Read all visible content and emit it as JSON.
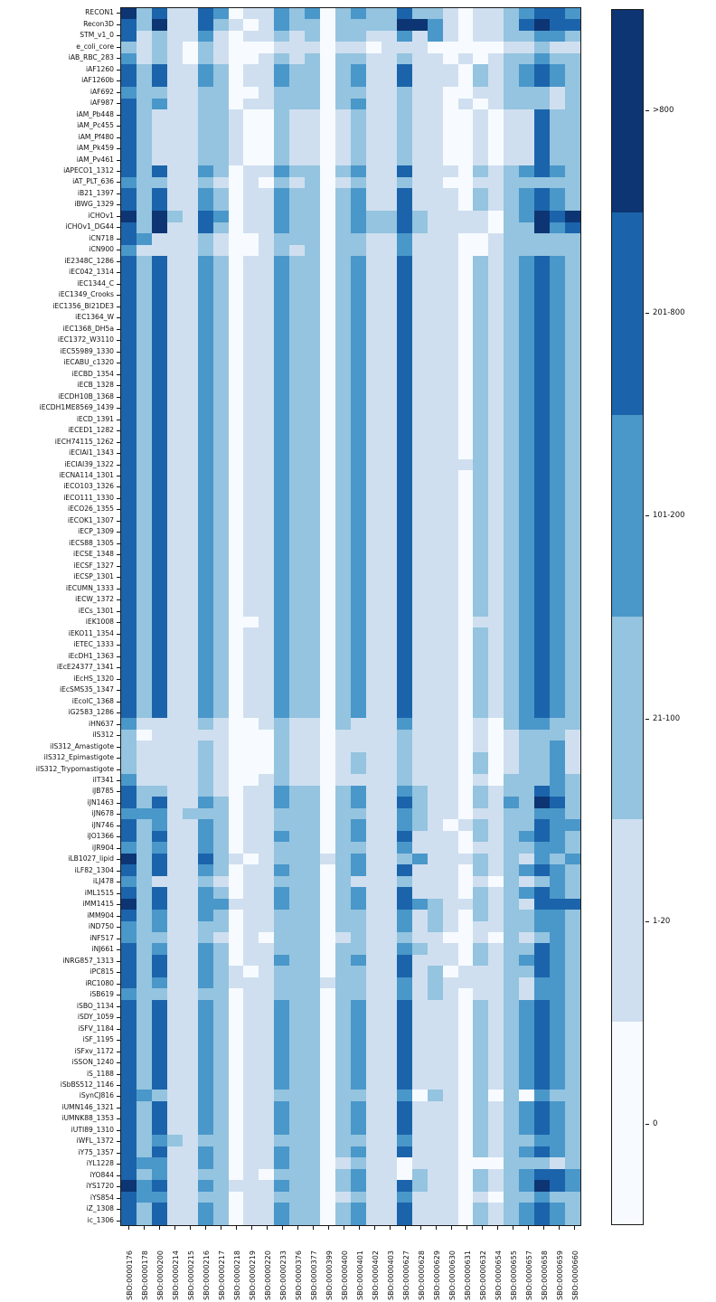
{
  "chart_data": {
    "type": "heatmap",
    "title": "",
    "xlabel": "",
    "ylabel": "",
    "legend_position": "right-colorbar",
    "grid_lines": false,
    "value_levels": [
      "0",
      "1-20",
      "21-100",
      "101-200",
      "201-800",
      ">800"
    ],
    "palette": [
      "#f7fbff",
      "#cfdff0",
      "#94c4df",
      "#4a97ca",
      "#1b64ab",
      "#0d3573"
    ],
    "colorbar_labels_top_to_bottom": [
      ">800",
      "201-800",
      "101-200",
      "21-100",
      "1-20",
      "0"
    ],
    "columns": [
      "SBO:0000176",
      "SBO:0000178",
      "SBO:0000200",
      "SBO:0000214",
      "SBO:0000215",
      "SBO:0000216",
      "SBO:0000217",
      "SBO:0000218",
      "SBO:0000219",
      "SBO:0000220",
      "SBO:0000233",
      "SBO:0000376",
      "SBO:0000377",
      "SBO:0000399",
      "SBO:0000400",
      "SBO:0000401",
      "SBO:0000402",
      "SBO:0000403",
      "SBO:0000627",
      "SBO:0000628",
      "SBO:0000629",
      "SBO:0000630",
      "SBO:0000631",
      "SBO:0000632",
      "SBO:0000654",
      "SBO:0000655",
      "SBO:0000657",
      "SBO:0000658",
      "SBO:0000659",
      "SBO:0000660"
    ],
    "rows": [
      "RECON1",
      "Recon3D",
      "STM_v1_0",
      "e_coli_core",
      "iAB_RBC_283",
      "iAF1260",
      "iAF1260b",
      "iAF692",
      "iAF987",
      "iAM_Pb448",
      "iAM_Pc455",
      "iAM_Pf480",
      "iAM_Pk459",
      "iAM_Pv461",
      "iAPECO1_1312",
      "iAT_PLT_636",
      "iB21_1397",
      "iBWG_1329",
      "iCHOv1",
      "iCHOv1_DG44",
      "iCN718",
      "iCN900",
      "iE2348C_1286",
      "iEC042_1314",
      "iEC1344_C",
      "iEC1349_Crooks",
      "iEC1356_Bl21DE3",
      "iEC1364_W",
      "iEC1368_DH5a",
      "iEC1372_W3110",
      "iEC55989_1330",
      "iECABU_c1320",
      "iECBD_1354",
      "iECB_1328",
      "iECDH10B_1368",
      "iECDH1ME8569_1439",
      "iECD_1391",
      "iECED1_1282",
      "iECH74115_1262",
      "iECIAI1_1343",
      "iECIAI39_1322",
      "iECNA114_1301",
      "iECO103_1326",
      "iECO111_1330",
      "iECO26_1355",
      "iECOK1_1307",
      "iECP_1309",
      "iECS88_1305",
      "iECSE_1348",
      "iECSF_1327",
      "iECSP_1301",
      "iECUMN_1333",
      "iECW_1372",
      "iECs_1301",
      "iEK1008",
      "iEKO11_1354",
      "iETEC_1333",
      "iEcDH1_1363",
      "iEcE24377_1341",
      "iEcHS_1320",
      "iEcSMS35_1347",
      "iEcolC_1368",
      "iG2583_1286",
      "iHN637",
      "iIS312",
      "iIS312_Amastigote",
      "iIS312_Epimastigote",
      "iIS312_Trypomastigote",
      "iIT341",
      "iJB785",
      "iJN1463",
      "iJN678",
      "iJN746",
      "iJO1366",
      "iJR904",
      "iLB1027_lipid",
      "iLF82_1304",
      "iLJ478",
      "iML1515",
      "iMM1415",
      "iMM904",
      "iND750",
      "iNF517",
      "iNJ661",
      "iNRG857_1313",
      "iPC815",
      "iRC1080",
      "iSB619",
      "iSBO_1134",
      "iSDY_1059",
      "iSFV_1184",
      "iSF_1195",
      "iSFxv_1172",
      "iSSON_1240",
      "iS_1188",
      "iSbBS512_1146",
      "iSynCJ816",
      "iUMN146_1321",
      "iUMNK88_1353",
      "iUTI89_1310",
      "iWFL_1372",
      "iY75_1357",
      "iYL1228",
      "iYO844",
      "iYS1720",
      "iYS854",
      "iZ_1308",
      "ic_1306"
    ],
    "grid": [
      "524114301132302322422101123443",
      "425114210132202222553101124544",
      "412113101121202211313101122332",
      "212102100011101101110000011211",
      "312102100121202211211010122322",
      "424113201132202311411102123432",
      "424113201132202311411102123432",
      "322112200122202211211001122212",
      "423112201122202311211010122212",
      "421112210021101211211001011422",
      "421112210021101211211001011422",
      "421112210021101211211001011422",
      "421112210021101211211001011422",
      "421112210021101211211001011422",
      "424113201132202311411102123432",
      "322112101021201211211001122222",
      "424113201132202311411102123432",
      "424113201132202311411102123432",
      "525214301132202322421111023545",
      "425114201132202322421111022534",
      "431112100122202211311100122222",
      "311112100121202211311100122222",
      "424113201132202311411102123432",
      "424113201132202311411102123432",
      "424113201132202311411102123432",
      "424113201132202311411102123432",
      "424113201132202311411102123432",
      "424113201132202311411102123432",
      "424113201132202311411102123432",
      "424113201132202311411102123432",
      "424113201132202311411102123432",
      "424113201132202311411102123432",
      "424113201132202311411102123432",
      "424113201132202311411102123432",
      "424113201132202311411102123432",
      "424113201132202311411102123432",
      "424113201132202311411102123432",
      "424113201132202311411102123432",
      "424113201132202311411102123432",
      "424113201132202311411102123432",
      "424113201132202311411112123432",
      "424113201132202311411102123432",
      "424113201132202311411102123432",
      "424113201132202311411102123432",
      "424113201132202311411102123432",
      "424113201132202311411102123432",
      "424113201132202311411102123432",
      "424113201132202311411102123432",
      "424113201132202311411102123432",
      "424113201132202311411102123432",
      "424113201132202311411102123432",
      "424113201132202311411102123432",
      "424113201132202311411102123432",
      "424113201132202311411102123432",
      "424113200132202311411101123432",
      "424113201132202311411102123432",
      "424113201132202311411102123432",
      "424113201132202311411102123432",
      "424113201132202311411102123432",
      "424113201132202311411102123432",
      "424113201132202311411102123432",
      "424113201132202311411102123432",
      "424113201132202311411102123432",
      "311112100121102111311101023322",
      "201111100021101111211101012221",
      "211112100021101111211101012231",
      "211112100021101211211102012231",
      "211112100021101211211102012231",
      "311112100121101111211101022232",
      "422112101132202311321102122432",
      "424113201132202311421102132542",
      "333122201122202211321101122332",
      "423113201122202311321012122433",
      "424113201132202311411102123432",
      "323113201122202211311101122332",
      "524114210122212311231112121323",
      "424113201132202311411102123432",
      "321112101122202111211101021232",
      "424113201132202311411102123432",
      "524113311132202311432112121444",
      "423113201122202211312102122332",
      "323112201122202211312101122332",
      "322112101022201211211001021232",
      "423113201122202211321102122432",
      "424113201132202311411102123432",
      "424113210122202211412011122432",
      "423113211122212211312111121332",
      "322112201122202211312101121332",
      "424113201132202311411102123432",
      "424113201132202311411102123432",
      "424113201132202311411102123432",
      "424113201132202311411102123432",
      "424113201132202311411102123432",
      "424113201132202311411102123432",
      "424113201132202311411102123432",
      "424113201132202311411102123432",
      "432113201122202211302102020322",
      "424113201132202311411102123432",
      "424113201132202311411102123432",
      "424113201132202311411102123432",
      "423212201122202211311102122332",
      "424113201132202311411102123432",
      "433113201132201211011100022212",
      "423112201022202311021102123443",
      "534113211132202311421102123543",
      "433112201122201211311101022322",
      "424113201132202311411102123432",
      "424113201132202311411102123432"
    ]
  }
}
